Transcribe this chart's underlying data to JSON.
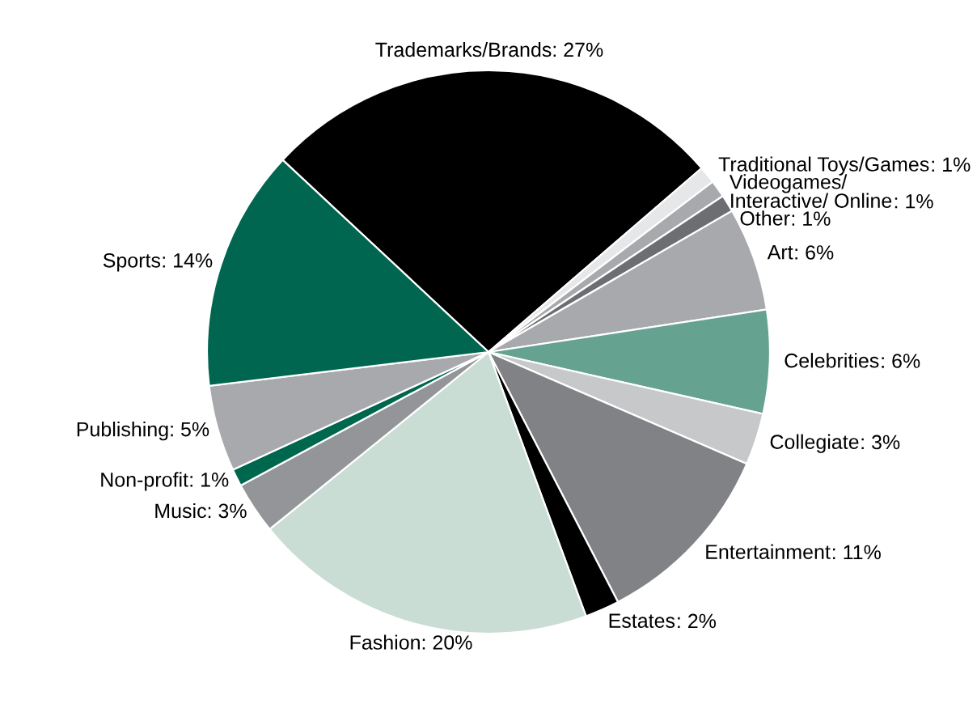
{
  "chart_data": {
    "type": "pie",
    "categories": [
      "Trademarks/Brands",
      "Traditional Toys/Games",
      "Videogames/\nInteractive/ Online",
      "Other",
      "Art",
      "Celebrities",
      "Collegiate",
      "Entertainment",
      "Estates",
      "Fashion",
      "Music",
      "Non-profit",
      "Publishing",
      "Sports"
    ],
    "values": [
      27,
      1,
      1,
      1,
      6,
      6,
      3,
      11,
      2,
      20,
      3,
      1,
      5,
      14
    ],
    "value_labels": [
      ": 27%",
      ": 1%",
      ": 1%",
      ": 1%",
      ": 6%",
      ": 6%",
      ": 3%",
      ": 11%",
      ": 2%",
      ": 20%",
      ": 3%",
      ": 1%",
      ": 5%",
      ": 14%"
    ],
    "colors": [
      "#000000",
      "#e6e7e8",
      "#a7a9ac",
      "#6d6e71",
      "#a7a9ac",
      "#65a290",
      "#c7c8ca",
      "#808285",
      "#000000",
      "#c9ddd5",
      "#939598",
      "#00674f",
      "#a7a9ac",
      "#00664f"
    ],
    "legend": false
  }
}
